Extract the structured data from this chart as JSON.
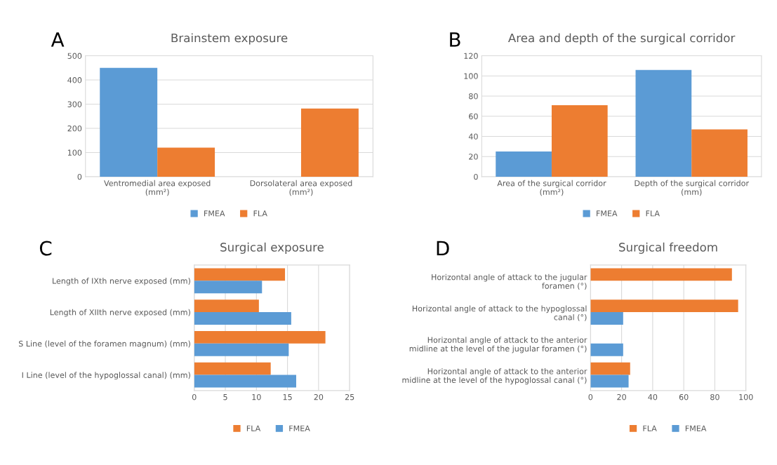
{
  "chart_data": [
    {
      "type": "bar",
      "title": "Brainstem exposure",
      "annotations": [
        "A"
      ],
      "categories": [
        "Ventromedial area exposed\n(mm²)",
        "Dorsolateral area exposed\n(mm²)"
      ],
      "series": [
        {
          "name": "FMEA",
          "color": "#5b9bd5",
          "values": [
            450,
            0
          ]
        },
        {
          "name": "FLA",
          "color": "#ed7d31",
          "values": [
            120,
            282
          ]
        }
      ],
      "ylim": [
        0,
        500
      ],
      "yticks": [
        0,
        100,
        200,
        300,
        400,
        500
      ],
      "grid": "y",
      "legend": "bottom"
    },
    {
      "type": "bar",
      "title": "Area and depth of the surgical corridor",
      "annotations": [
        "B"
      ],
      "categories": [
        "Area of the surgical corridor\n(mm²)",
        "Depth of the surgical corridor\n(mm)"
      ],
      "series": [
        {
          "name": "FMEA",
          "color": "#5b9bd5",
          "values": [
            25,
            106
          ]
        },
        {
          "name": "FLA",
          "color": "#ed7d31",
          "values": [
            71,
            47
          ]
        }
      ],
      "ylim": [
        0,
        120
      ],
      "yticks": [
        0,
        20,
        40,
        60,
        80,
        100,
        120
      ],
      "grid": "y",
      "legend": "bottom"
    },
    {
      "type": "bar",
      "orientation": "horizontal",
      "title": "Surgical exposure",
      "annotations": [
        "C"
      ],
      "categories": [
        "Length of IXth nerve exposed (mm)",
        "Length of XIIth nerve exposed (mm)",
        "S Line (level of the foramen magnum) (mm)",
        "I Line (level of the hypoglossal canal) (mm)"
      ],
      "series": [
        {
          "name": "FLA",
          "color": "#ed7d31",
          "values": [
            14.6,
            10.4,
            21.1,
            12.3
          ]
        },
        {
          "name": "FMEA",
          "color": "#5b9bd5",
          "values": [
            10.9,
            15.6,
            15.2,
            16.4
          ]
        }
      ],
      "xlim": [
        0,
        25
      ],
      "xticks": [
        0,
        5,
        10,
        15,
        20,
        25
      ],
      "grid": "x",
      "legend": "bottom"
    },
    {
      "type": "bar",
      "orientation": "horizontal",
      "title": "Surgical freedom",
      "annotations": [
        "D"
      ],
      "categories": [
        "Horizontal angle of attack to the jugular\nforamen (°)",
        "Horizontal angle of attack to the hypoglossal\ncanal (°)",
        "Horizontal angle of attack to the anterior\nmidline at the level of the jugular foramen (°)",
        "Horizontal angle of attack to the anterior\nmidline at the level of the hypoglossal canal (°)"
      ],
      "series": [
        {
          "name": "FLA",
          "color": "#ed7d31",
          "values": [
            91,
            95,
            null,
            25.5
          ]
        },
        {
          "name": "FMEA",
          "color": "#5b9bd5",
          "values": [
            null,
            21,
            21,
            24.5
          ]
        }
      ],
      "xlim": [
        0,
        100
      ],
      "xticks": [
        0,
        20,
        40,
        60,
        80,
        100
      ],
      "grid": "x",
      "legend": "bottom"
    }
  ]
}
